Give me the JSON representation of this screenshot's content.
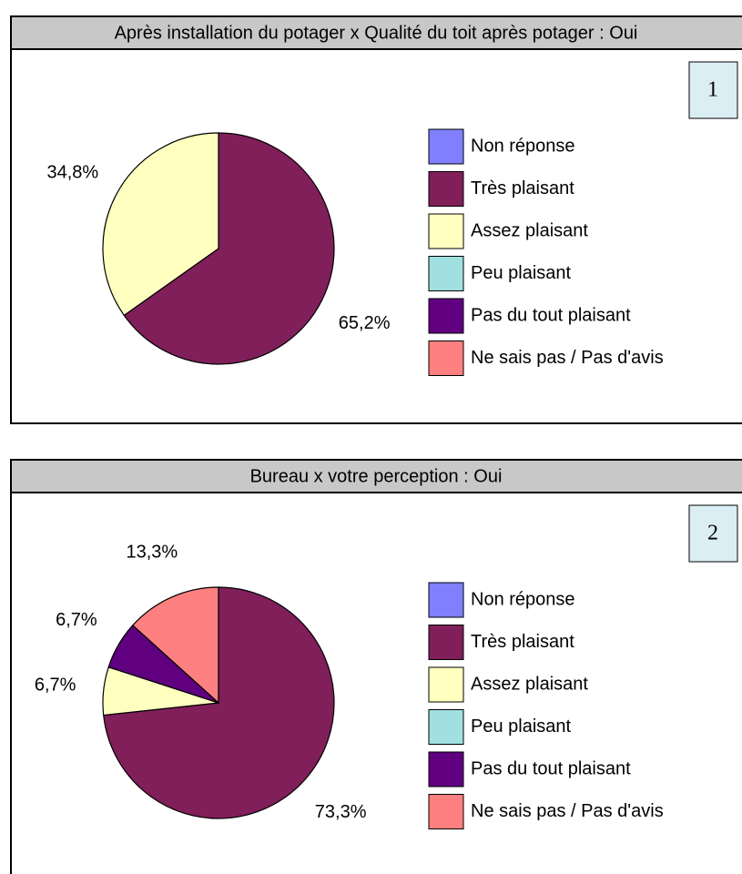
{
  "chart_data": [
    {
      "type": "pie",
      "title": "Après installation du potager x Qualité du toit après potager : Oui",
      "panel_label": "1",
      "categories": [
        "Non réponse",
        "Très plaisant",
        "Assez plaisant",
        "Peu plaisant",
        "Pas du tout plaisant",
        "Ne sais pas / Pas d'avis"
      ],
      "values": [
        0,
        65.2,
        34.8,
        0,
        0,
        0
      ],
      "value_labels": [
        null,
        "65,2%",
        "34,8%",
        null,
        null,
        null
      ],
      "colors": [
        "#8080ff",
        "#801f5a",
        "#ffffc0",
        "#a0e0e0",
        "#600080",
        "#ff8080"
      ]
    },
    {
      "type": "pie",
      "title": "Bureau x votre perception : Oui",
      "panel_label": "2",
      "categories": [
        "Non réponse",
        "Très plaisant",
        "Assez plaisant",
        "Peu plaisant",
        "Pas du tout plaisant",
        "Ne sais pas / Pas d'avis"
      ],
      "values": [
        0,
        73.3,
        6.7,
        0,
        6.7,
        13.3
      ],
      "value_labels": [
        null,
        "73,3%",
        "6,7%",
        null,
        "6,7%",
        "13,3%"
      ],
      "colors": [
        "#8080ff",
        "#801f5a",
        "#ffffc0",
        "#a0e0e0",
        "#600080",
        "#ff8080"
      ]
    }
  ]
}
